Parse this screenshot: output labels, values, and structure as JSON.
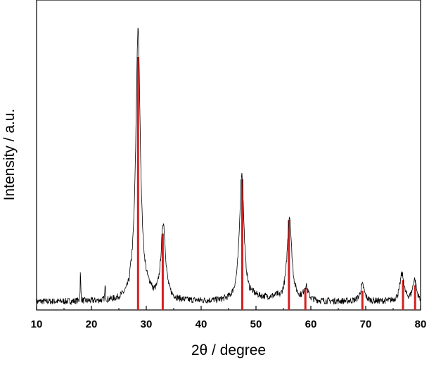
{
  "chart_data": {
    "type": "line",
    "title": "",
    "xlabel": "2θ / degree",
    "ylabel": "Intensity / a.u.",
    "xlim": [
      10,
      80
    ],
    "ylim": [
      0,
      1.0
    ],
    "x_ticks": [
      10,
      20,
      30,
      40,
      50,
      60,
      70,
      80
    ],
    "y_ticks_shown": false,
    "grid": false,
    "legend": "none",
    "series": [
      {
        "kind": "pattern",
        "color": "#000000",
        "baseline": 0.02,
        "noise": 0.012,
        "peaks": [
          {
            "x": 18.0,
            "height": 0.11,
            "width": 0.06
          },
          {
            "x": 22.5,
            "height": 0.05,
            "width": 0.07
          },
          {
            "x": 28.5,
            "height": 0.98,
            "width": 0.5
          },
          {
            "x": 33.1,
            "height": 0.28,
            "width": 0.5
          },
          {
            "x": 47.4,
            "height": 0.47,
            "width": 0.5
          },
          {
            "x": 56.1,
            "height": 0.31,
            "width": 0.5
          },
          {
            "x": 59.1,
            "height": 0.05,
            "width": 0.45
          },
          {
            "x": 69.4,
            "height": 0.06,
            "width": 0.45
          },
          {
            "x": 76.6,
            "height": 0.1,
            "width": 0.45
          },
          {
            "x": 78.9,
            "height": 0.08,
            "width": 0.4
          }
        ]
      },
      {
        "kind": "reference-lines",
        "color": "#d42020",
        "x": [
          28.5,
          33.0,
          47.5,
          56.0,
          59.0,
          69.4,
          76.8,
          79.0
        ],
        "heights": [
          0.92,
          0.27,
          0.47,
          0.32,
          0.07,
          0.06,
          0.1,
          0.08
        ]
      }
    ]
  }
}
